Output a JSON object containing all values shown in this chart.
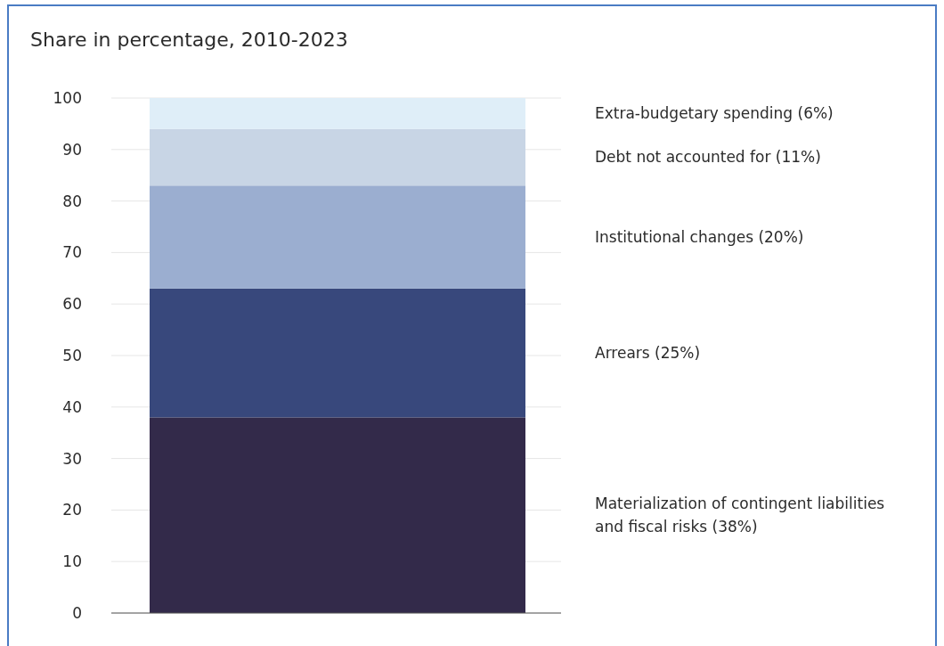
{
  "chart_data": {
    "type": "bar",
    "title": "Share in percentage, 2010-2023",
    "categories": [
      null
    ],
    "stacked": true,
    "series": [
      {
        "name": "Materialization of contingent liabilities and fiscal risks (38%)",
        "color": "#332a4a",
        "values": [
          38
        ]
      },
      {
        "name": "Arrears (25%)",
        "color": "#38487c",
        "values": [
          25
        ]
      },
      {
        "name": "Institutional changes (20%)",
        "color": "#9baed0",
        "values": [
          20
        ]
      },
      {
        "name": "Debt not accounted for (11%)",
        "color": "#c8d5e5",
        "values": [
          11
        ]
      },
      {
        "name": "Extra-budgetary spending (6%)",
        "color": "#dfeef8",
        "values": [
          6
        ]
      }
    ],
    "ylim": [
      0,
      100
    ],
    "yticks": [
      0,
      10,
      20,
      30,
      40,
      50,
      60,
      70,
      80,
      90,
      100
    ],
    "grid": "y",
    "legend": "right"
  }
}
